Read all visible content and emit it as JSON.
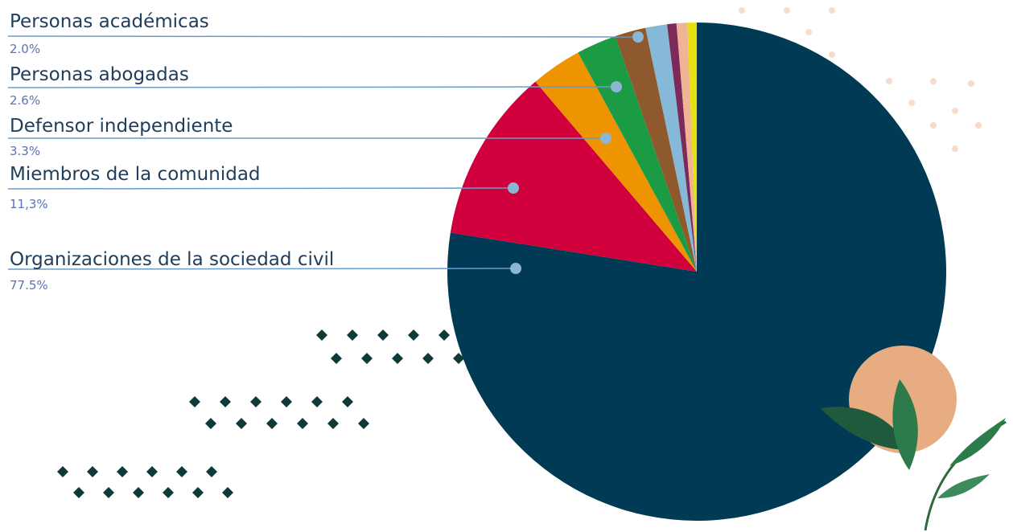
{
  "chart_data": {
    "type": "pie",
    "categories": [
      "Organizaciones de la sociedad civil",
      "Miembros de la comunidad",
      "Defensor independiente",
      "Personas abogadas",
      "Personas académicas",
      null,
      null,
      null,
      null
    ],
    "values": [
      77.5,
      11.3,
      3.3,
      2.6,
      2.0,
      1.4,
      0.6,
      0.7,
      0.6
    ],
    "value_labels": [
      "77.5%",
      "11,3%",
      "3.3%",
      "2.6%",
      "2.0%",
      null,
      null,
      null,
      null
    ],
    "colors": [
      "#003a54",
      "#d0003c",
      "#ee9400",
      "#1c9b45",
      "#8e5a2d",
      "#86b8d8",
      "#7d2a5a",
      "#f0b494",
      "#e6e010"
    ]
  }
}
